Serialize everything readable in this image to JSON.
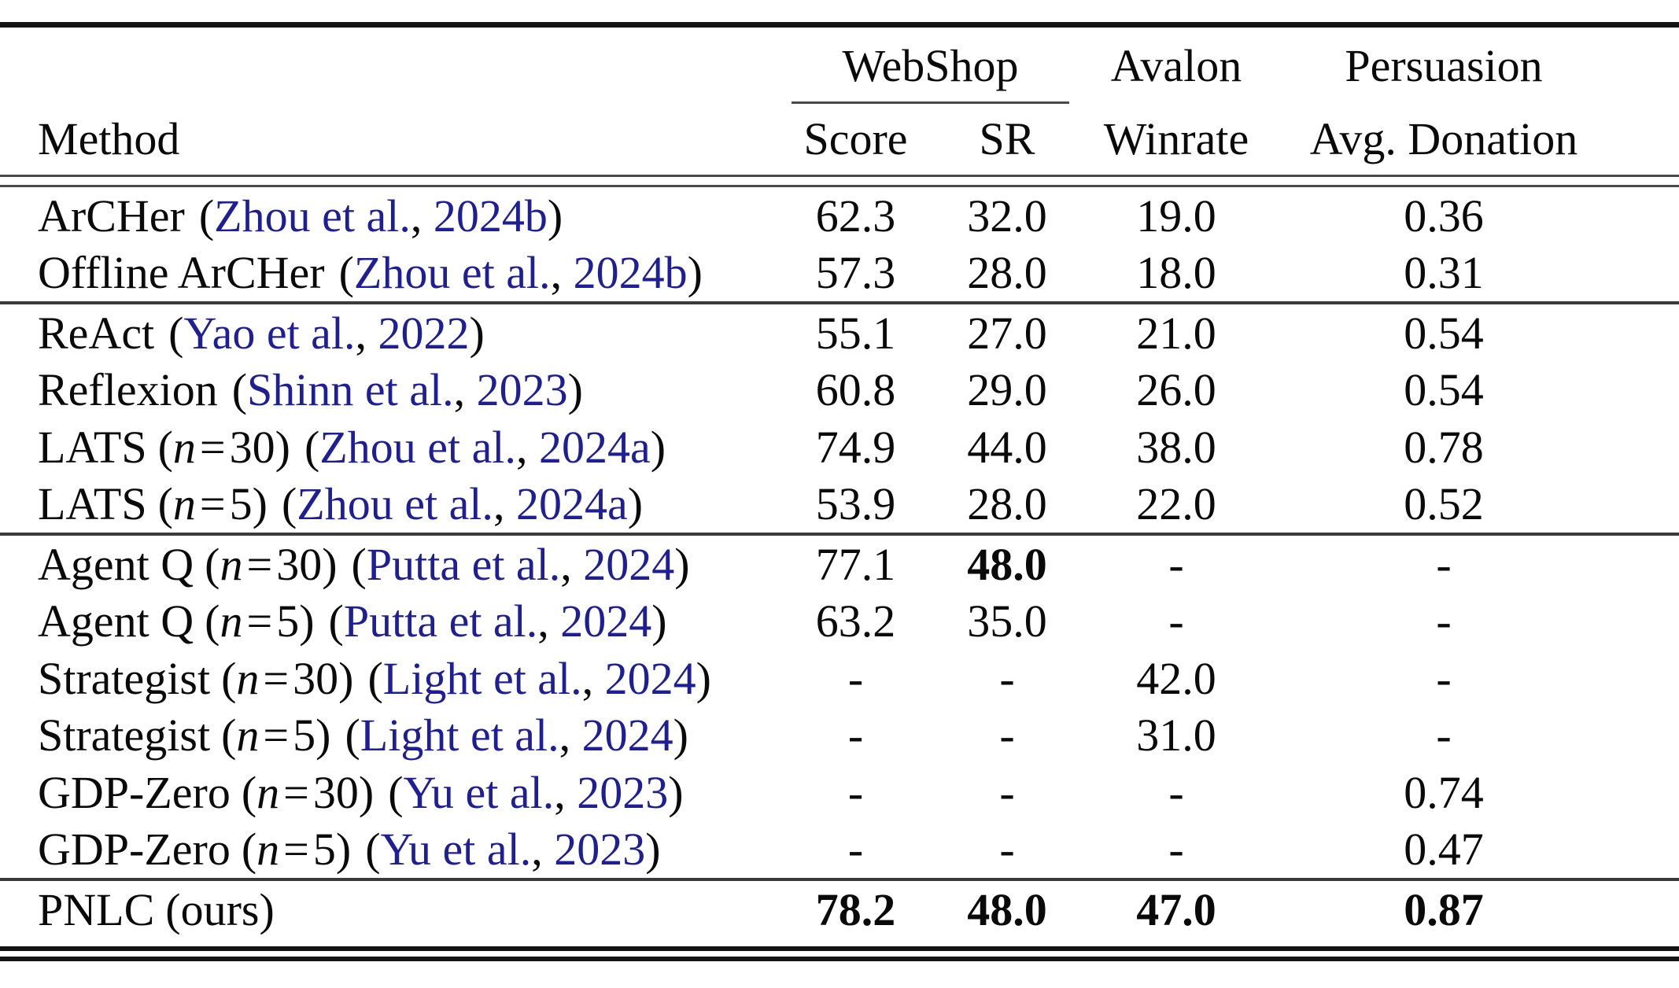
{
  "colors": {
    "citation": "#1e1e96",
    "text": "#0a0a0a",
    "rule_dark": "#141414",
    "rule_gray": "#4a4a4a"
  },
  "glyphs": {
    "paren_open": "(",
    "paren_close": ")",
    "comma_space": ", ",
    "n_symbol": "n",
    "equals": "="
  },
  "headers": {
    "method": "Method",
    "webshop": "WebShop",
    "score": "Score",
    "sr": "SR",
    "avalon": "Avalon",
    "winrate": "Winrate",
    "persuasion": "Persuasion",
    "donation": "Avg. Donation"
  },
  "groups": [
    [
      {
        "name": "ArCHer",
        "cite": {
          "authors": "Zhou et al.",
          "year": "2024b"
        },
        "values": {
          "score": "62.3",
          "sr": "32.0",
          "winrate": "19.0",
          "donation": "0.36"
        },
        "bold": []
      },
      {
        "name": "Offline ArCHer",
        "cite": {
          "authors": "Zhou et al.",
          "year": "2024b"
        },
        "values": {
          "score": "57.3",
          "sr": "28.0",
          "winrate": "18.0",
          "donation": "0.31"
        },
        "bold": []
      }
    ],
    [
      {
        "name": "ReAct",
        "cite": {
          "authors": "Yao et al.",
          "year": "2022"
        },
        "values": {
          "score": "55.1",
          "sr": "27.0",
          "winrate": "21.0",
          "donation": "0.54"
        },
        "bold": []
      },
      {
        "name": "Reflexion",
        "cite": {
          "authors": "Shinn et al.",
          "year": "2023"
        },
        "values": {
          "score": "60.8",
          "sr": "29.0",
          "winrate": "26.0",
          "donation": "0.54"
        },
        "bold": []
      },
      {
        "name": "LATS",
        "n": "30",
        "cite": {
          "authors": "Zhou et al.",
          "year": "2024a"
        },
        "values": {
          "score": "74.9",
          "sr": "44.0",
          "winrate": "38.0",
          "donation": "0.78"
        },
        "bold": []
      },
      {
        "name": "LATS",
        "n": "5",
        "cite": {
          "authors": "Zhou et al.",
          "year": "2024a"
        },
        "values": {
          "score": "53.9",
          "sr": "28.0",
          "winrate": "22.0",
          "donation": "0.52"
        },
        "bold": []
      }
    ],
    [
      {
        "name": "Agent Q",
        "n": "30",
        "cite": {
          "authors": "Putta et al.",
          "year": "2024"
        },
        "values": {
          "score": "77.1",
          "sr": "48.0",
          "winrate": "-",
          "donation": "-"
        },
        "bold": [
          "sr"
        ]
      },
      {
        "name": "Agent Q",
        "n": "5",
        "cite": {
          "authors": "Putta et al.",
          "year": "2024"
        },
        "values": {
          "score": "63.2",
          "sr": "35.0",
          "winrate": "-",
          "donation": "-"
        },
        "bold": []
      },
      {
        "name": "Strategist",
        "n": "30",
        "cite": {
          "authors": "Light et al.",
          "year": "2024"
        },
        "values": {
          "score": "-",
          "sr": "-",
          "winrate": "42.0",
          "donation": "-"
        },
        "bold": []
      },
      {
        "name": "Strategist",
        "n": "5",
        "cite": {
          "authors": "Light et al.",
          "year": "2024"
        },
        "values": {
          "score": "-",
          "sr": "-",
          "winrate": "31.0",
          "donation": "-"
        },
        "bold": []
      },
      {
        "name": "GDP-Zero",
        "n": "30",
        "cite": {
          "authors": "Yu et al.",
          "year": "2023"
        },
        "values": {
          "score": "-",
          "sr": "-",
          "winrate": "-",
          "donation": "0.74"
        },
        "bold": []
      },
      {
        "name": "GDP-Zero",
        "n": "5",
        "cite": {
          "authors": "Yu et al.",
          "year": "2023"
        },
        "values": {
          "score": "-",
          "sr": "-",
          "winrate": "-",
          "donation": "0.47"
        },
        "bold": []
      }
    ],
    [
      {
        "name": "PNLC",
        "suffix": "(ours)",
        "values": {
          "score": "78.2",
          "sr": "48.0",
          "winrate": "47.0",
          "donation": "0.87"
        },
        "bold": [
          "score",
          "sr",
          "winrate",
          "donation"
        ]
      }
    ]
  ]
}
